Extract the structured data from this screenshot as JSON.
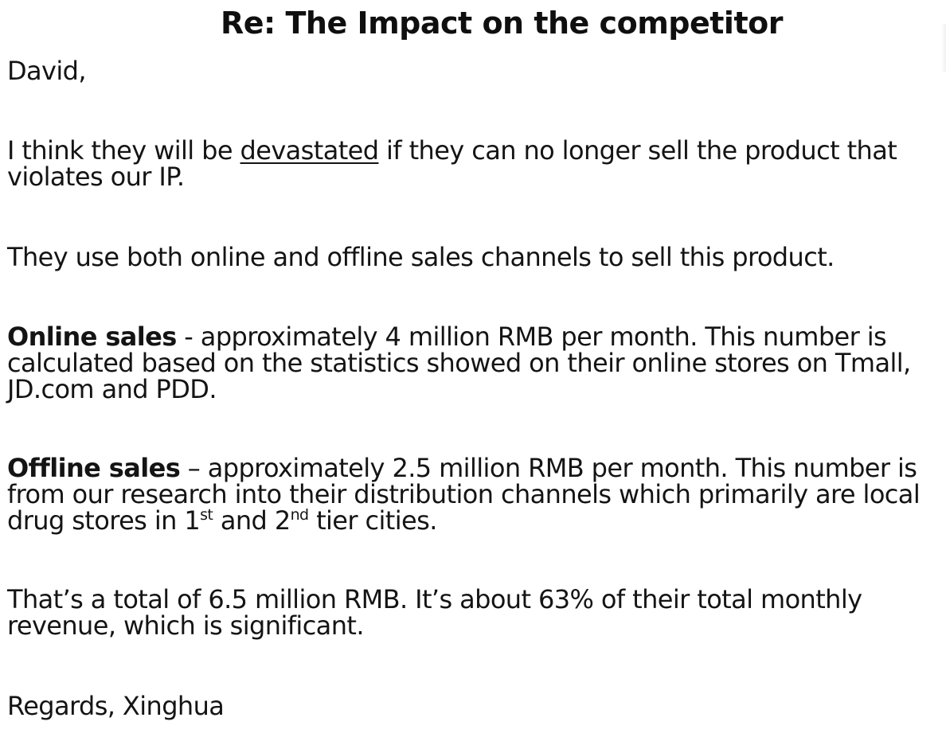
{
  "title": "Re: The Impact on the competitor",
  "greeting": "David,",
  "p1": {
    "before": "I think they will be ",
    "underlined": "devastated",
    "after": " if they can no longer sell the product that",
    "line2": "violates our IP."
  },
  "p2": "They use both online and offline sales channels to sell this product.",
  "online": {
    "label": "Online sales",
    "line1": " - approximately 4 million RMB per month.  This number is",
    "line2": "calculated based on the statistics showed on their online stores on Tmall,",
    "line3": "JD.com and PDD."
  },
  "offline": {
    "label": "Offline sales",
    "line1": " – approximately 2.5 million RMB per month.  This number is",
    "line2": "from our research into their distribution channels which primarily are local",
    "line3_a": "drug stores in 1",
    "sup1": "st",
    "line3_b": " and 2",
    "sup2": "nd",
    "line3_c": " tier cities."
  },
  "total": {
    "line1": "That’s a total of 6.5 million RMB.  It’s about 63% of their total monthly",
    "line2": "revenue, which is significant."
  },
  "signoff": "Regards, Xinghua"
}
